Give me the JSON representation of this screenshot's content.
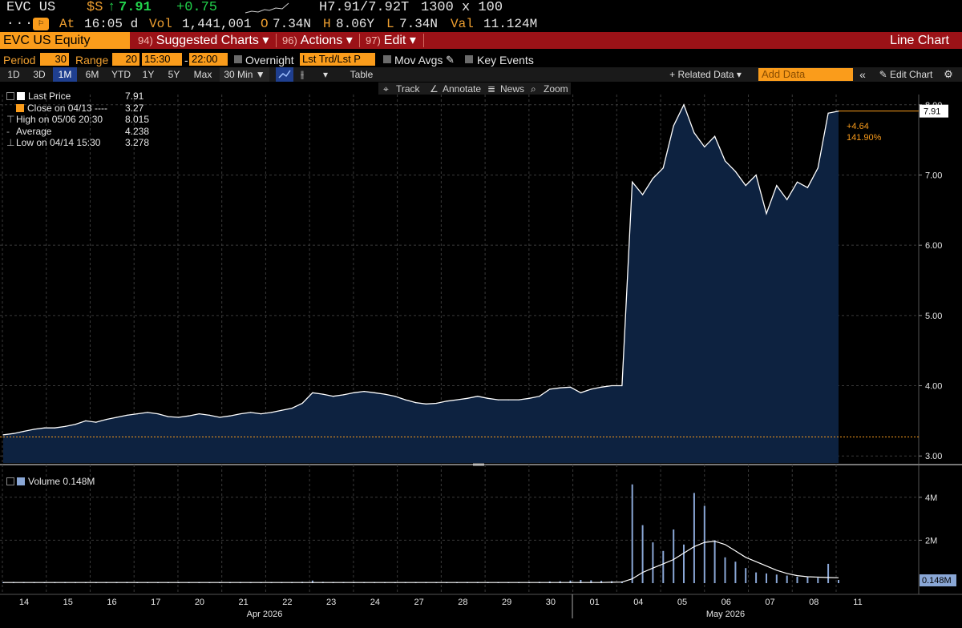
{
  "header": {
    "ticker": "EVC US",
    "currency": "$S",
    "arrow": "↑",
    "last": "7.91",
    "change": "+0.75",
    "bidask": "H7.91/7.92T",
    "size": "1300 x 100",
    "at_label": "At",
    "time": "16:05 d",
    "vol_label": "Vol",
    "vol": "1,441,001",
    "open_label": "O",
    "open": "7.34N",
    "high_label": "H",
    "high": "8.06Y",
    "low_label": "L",
    "low": "7.34N",
    "val_label": "Val",
    "val": "11.124M",
    "colors": {
      "last": "#22d34c",
      "label": "#f0a030",
      "value": "#e6e6e6"
    }
  },
  "toolbar": {
    "security": "EVC US Equity",
    "menus": [
      {
        "num": "94)",
        "label": "Suggested Charts",
        "caret": "▾"
      },
      {
        "num": "96)",
        "label": "Actions",
        "caret": "▾"
      },
      {
        "num": "97)",
        "label": "Edit",
        "caret": "▾"
      }
    ],
    "chart_type": "Line Chart"
  },
  "period_bar": {
    "period_label": "Period",
    "period_value": "30",
    "range_label": "Range",
    "range_value": "20",
    "start_time": "15:30",
    "dash": "-",
    "end_time": "22:00",
    "overnight": "Overnight",
    "trade_field": "Lst Trd/Lst P",
    "mov_avgs": "Mov Avgs",
    "key_events": "Key Events"
  },
  "range_bar": {
    "buttons": [
      "1D",
      "3D",
      "1M",
      "6M",
      "YTD",
      "1Y",
      "5Y",
      "Max"
    ],
    "selected": "1M",
    "interval": "30 Min ▼",
    "caret": "▾",
    "table": "Table",
    "related": "+ Related Data ▾",
    "add_data_placeholder": "Add Data",
    "collapse": "«",
    "edit_chart": "Edit Chart"
  },
  "chart_tools": [
    "Track",
    "Annotate",
    "News",
    "Zoom"
  ],
  "legend": {
    "items": [
      {
        "label": "Last Price",
        "value": "7.91",
        "color": "#ffffff"
      },
      {
        "label": "Close on 04/13 ---- ",
        "value": "3.27",
        "color": "#fa9c1b"
      },
      {
        "label": "High on 05/06 20:30",
        "value": "8.015",
        "color": ""
      },
      {
        "label": "Average",
        "value": "4.238",
        "color": ""
      },
      {
        "label": "Low on 04/14 15:30",
        "value": "3.278",
        "color": ""
      }
    ],
    "volume_label": "Volume 0.148M"
  },
  "chart_data": [
    {
      "type": "area",
      "title": "",
      "ylim": [
        2.9,
        8.1
      ],
      "y_ticks": [
        "3.00",
        "4.00",
        "5.00",
        "6.00",
        "7.00",
        "8.00"
      ],
      "y_tick_values": [
        3,
        4,
        5,
        6,
        7,
        8
      ],
      "x_day_labels": [
        "14",
        "15",
        "16",
        "17",
        "20",
        "21",
        "22",
        "23",
        "24",
        "27",
        "28",
        "29",
        "30",
        "01",
        "04",
        "05",
        "06",
        "07",
        "08",
        "11"
      ],
      "x_month_labels": [
        "Apr 2026",
        "May 2026"
      ],
      "reference_line": {
        "label": "Close on 04/13",
        "value": 3.27,
        "color": "#fa9c1b"
      },
      "last_price_tag": "7.91",
      "change_annotation": [
        "+4.64",
        "141.90%"
      ],
      "series": [
        {
          "name": "Last Price",
          "color": "#ffffff",
          "fill": "#0d2240",
          "values": [
            3.3,
            3.32,
            3.35,
            3.38,
            3.4,
            3.4,
            3.42,
            3.45,
            3.5,
            3.48,
            3.52,
            3.55,
            3.58,
            3.6,
            3.62,
            3.6,
            3.56,
            3.55,
            3.57,
            3.6,
            3.58,
            3.55,
            3.57,
            3.6,
            3.62,
            3.6,
            3.62,
            3.65,
            3.68,
            3.75,
            3.9,
            3.88,
            3.85,
            3.87,
            3.9,
            3.92,
            3.9,
            3.88,
            3.85,
            3.8,
            3.76,
            3.74,
            3.75,
            3.78,
            3.8,
            3.82,
            3.85,
            3.82,
            3.8,
            3.8,
            3.8,
            3.82,
            3.85,
            3.95,
            3.97,
            3.98,
            3.9,
            3.95,
            3.98,
            4.0,
            4.0,
            6.9,
            6.72,
            6.95,
            7.1,
            7.7,
            8.0,
            7.6,
            7.4,
            7.55,
            7.2,
            7.05,
            6.85,
            7.0,
            6.45,
            6.85,
            6.65,
            6.9,
            6.82,
            7.1,
            7.88,
            7.91
          ]
        }
      ]
    },
    {
      "type": "bar",
      "title": "",
      "ylim": [
        0,
        5000000
      ],
      "y_ticks": [
        "2M",
        "4M"
      ],
      "y_tick_values": [
        2000000,
        4000000
      ],
      "last_value_tag": "0.148M",
      "series": [
        {
          "name": "Volume",
          "color": "#8aa7d6",
          "values": [
            40000,
            50000,
            45000,
            40000,
            35000,
            40000,
            45000,
            40000,
            38000,
            42000,
            40000,
            45000,
            50000,
            40000,
            35000,
            38000,
            42000,
            40000,
            45000,
            40000,
            38000,
            40000,
            42000,
            45000,
            40000,
            38000,
            40000,
            42000,
            45000,
            60000,
            120000,
            60000,
            50000,
            45000,
            40000,
            42000,
            40000,
            38000,
            35000,
            40000,
            42000,
            40000,
            38000,
            40000,
            42000,
            45000,
            50000,
            45000,
            40000,
            42000,
            45000,
            50000,
            60000,
            80000,
            90000,
            120000,
            150000,
            130000,
            110000,
            90000,
            80000,
            4600000,
            2700000,
            1900000,
            1500000,
            2500000,
            1800000,
            4200000,
            3600000,
            2000000,
            1200000,
            1000000,
            700000,
            500000,
            450000,
            400000,
            350000,
            300000,
            280000,
            250000,
            900000,
            148000
          ]
        },
        {
          "name": "Volume Avg",
          "color": "#ffffff",
          "values": [
            30000,
            30000,
            30000,
            30000,
            30000,
            30000,
            30000,
            30000,
            30000,
            30000,
            30000,
            30000,
            30000,
            30000,
            30000,
            30000,
            30000,
            30000,
            30000,
            30000,
            30000,
            30000,
            30000,
            30000,
            30000,
            30000,
            30000,
            30000,
            30000,
            30000,
            30000,
            30000,
            30000,
            30000,
            30000,
            30000,
            30000,
            30000,
            30000,
            30000,
            30000,
            30000,
            30000,
            30000,
            30000,
            30000,
            30000,
            30000,
            30000,
            30000,
            30000,
            30000,
            30000,
            30000,
            30000,
            30000,
            30000,
            30000,
            30000,
            40000,
            50000,
            200000,
            500000,
            700000,
            900000,
            1100000,
            1400000,
            1700000,
            1900000,
            1950000,
            1800000,
            1500000,
            1200000,
            1000000,
            800000,
            600000,
            450000,
            350000,
            300000,
            280000,
            260000,
            250000
          ]
        }
      ]
    }
  ]
}
